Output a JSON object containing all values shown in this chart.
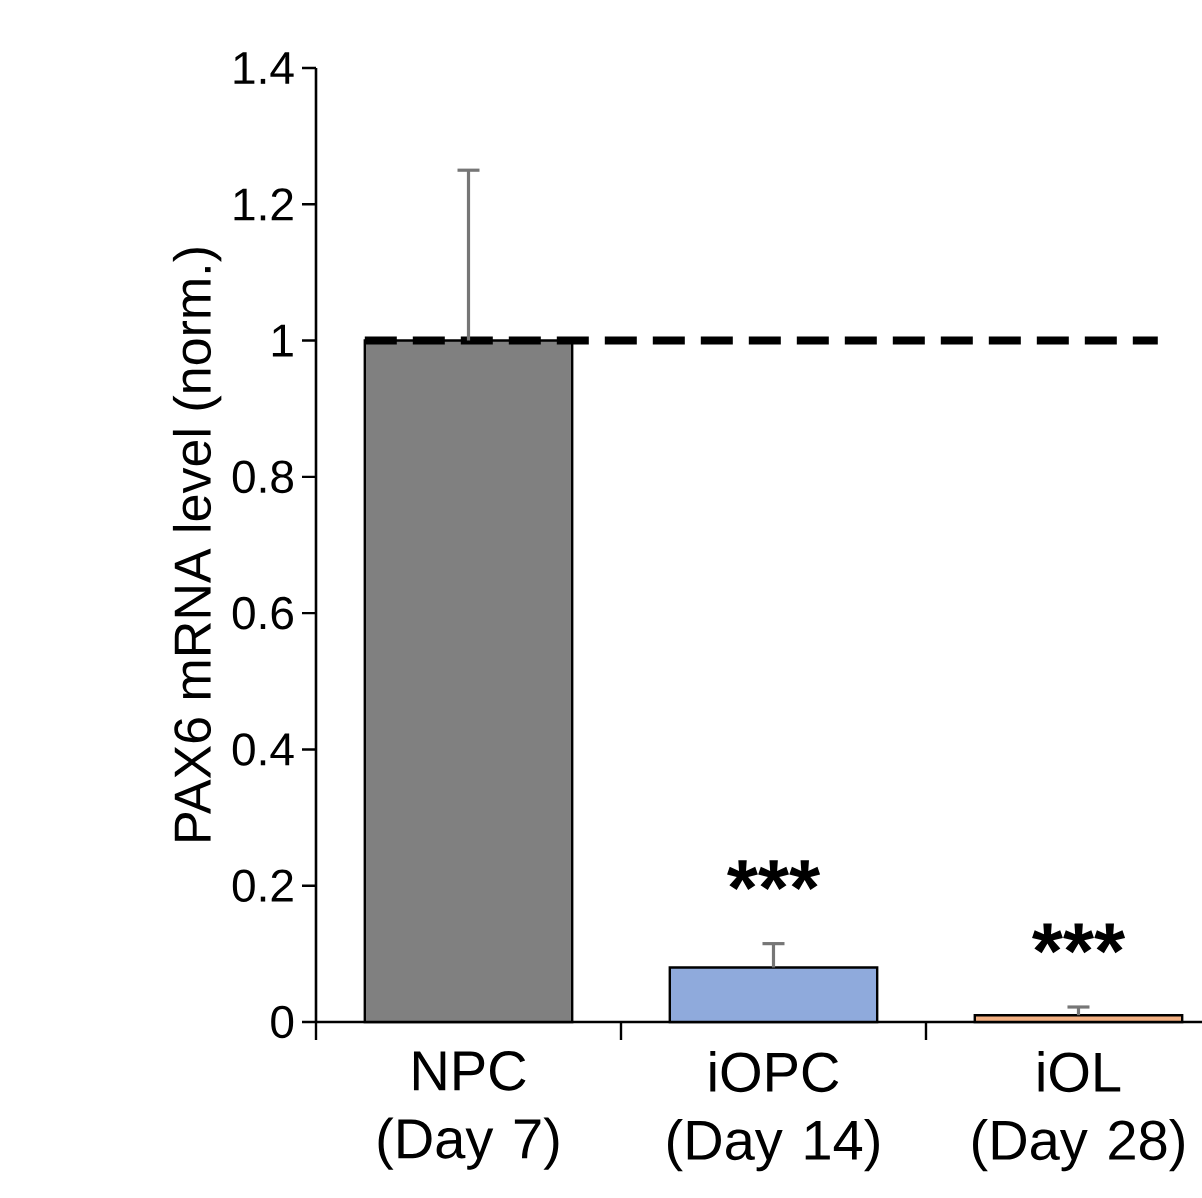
{
  "chart_data": {
    "type": "bar",
    "ylabel": "PAX6 mRNA level (norm.)",
    "categories": [
      "NPC (Day 7)",
      "iOPC (Day 14)",
      "iOL (Day 28)"
    ],
    "values": [
      1.0,
      0.08,
      0.01
    ],
    "colors": [
      "#808080",
      "#8faadc",
      "#f4b183"
    ],
    "errors": [
      0.25,
      0.035,
      0.012
    ],
    "ylim": [
      0,
      1.4
    ],
    "yticks": [
      0,
      0.2,
      0.4,
      0.6,
      0.8,
      1,
      1.2,
      1.4
    ],
    "ref_lines": [
      {
        "axis": "y",
        "value": 1,
        "label": null,
        "color": "#000000",
        "line_style": "dashed"
      }
    ],
    "annotations": [
      "***",
      "***"
    ]
  }
}
